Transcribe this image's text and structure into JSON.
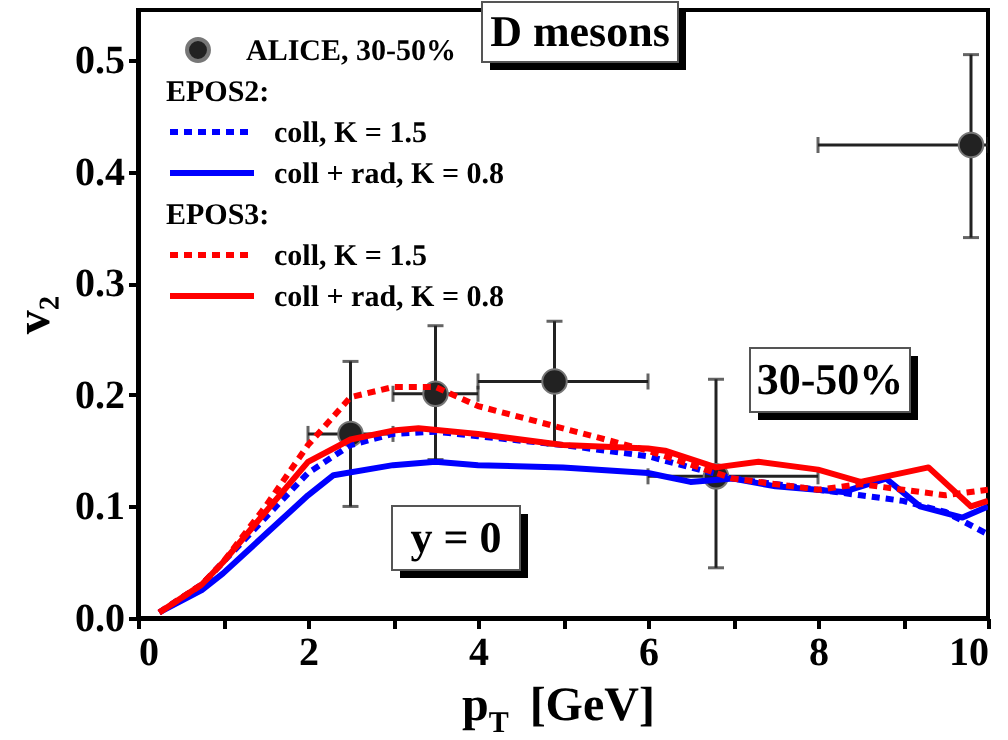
{
  "chart_data": {
    "type": "line",
    "xlabel": "p$_{T}$ [GeV]",
    "ylabel": "v₂",
    "annotations": [
      "D mesons",
      "30-50%",
      "y = 0",
      "EPOS2:",
      "EPOS3:"
    ],
    "xlim": [
      0,
      10
    ],
    "ylim": [
      0,
      0.545
    ],
    "xticks": [
      0,
      {
        "value": 1,
        "label": null
      },
      2,
      {
        "value": 3,
        "label": null
      },
      4,
      {
        "value": 5,
        "label": null
      },
      6,
      {
        "value": 7,
        "label": null
      },
      8,
      {
        "value": 9,
        "label": null
      },
      10
    ],
    "yticks": [
      {
        "value": 0,
        "label": "0.0"
      },
      {
        "value": 0.1,
        "label": "0.1"
      },
      {
        "value": 0.2,
        "label": "0.2"
      },
      {
        "value": 0.3,
        "label": "0.3"
      },
      {
        "value": 0.4,
        "label": "0.4"
      },
      {
        "value": 0.5,
        "label": "0.5"
      }
    ],
    "grid": false,
    "legend": "top left",
    "series": [
      {
        "name": "ALICE, 30-50%",
        "type": "scatter",
        "marker": "circle",
        "color": "#222222",
        "x": [
          2.5,
          3.5,
          4.9,
          6.8,
          9.8
        ],
        "values": [
          0.165,
          0.201,
          0.212,
          0.127,
          0.424
        ],
        "errors": [
          [
            0.1,
            0.23
          ],
          [
            0.142,
            0.262
          ],
          [
            0.155,
            0.266
          ],
          [
            0.045,
            0.214
          ],
          [
            0.341,
            0.505
          ]
        ],
        "xerrors": [
          [
            2,
            3
          ],
          [
            3,
            4
          ],
          [
            4,
            6
          ],
          [
            6,
            8
          ],
          [
            8,
            10
          ]
        ]
      },
      {
        "name": "coll, K = 1.5",
        "line_style": "dashed",
        "color": "#0000ff",
        "x": [
          0.25,
          0.75,
          1,
          1.5,
          2,
          2.5,
          3,
          3.5,
          4,
          5,
          6,
          7,
          8,
          8.5,
          9,
          9.5,
          10
        ],
        "values": [
          0.005,
          0.03,
          0.05,
          0.09,
          0.13,
          0.155,
          0.165,
          0.167,
          0.163,
          0.155,
          0.145,
          0.125,
          0.115,
          0.11,
          0.105,
          0.095,
          0.075
        ]
      },
      {
        "name": "coll + rad, K = 0.8",
        "line_style": "solid",
        "color": "#0000ff",
        "x": [
          0.25,
          0.75,
          1,
          1.5,
          2,
          2.3,
          3,
          3.5,
          4,
          5,
          6,
          6.5,
          7,
          7.5,
          8.3,
          8.8,
          9.2,
          9.7,
          10
        ],
        "values": [
          0.005,
          0.025,
          0.04,
          0.075,
          0.11,
          0.128,
          0.137,
          0.14,
          0.137,
          0.135,
          0.13,
          0.122,
          0.125,
          0.118,
          0.113,
          0.125,
          0.1,
          0.09,
          0.1
        ]
      },
      {
        "name": "coll, K = 1.5",
        "line_style": "dashed",
        "color": "#ff0000",
        "x": [
          0.25,
          0.75,
          1,
          1.5,
          2,
          2.5,
          3,
          3.5,
          4,
          5,
          6,
          7,
          8,
          8.5,
          9,
          9.5,
          10
        ],
        "values": [
          0.005,
          0.03,
          0.05,
          0.1,
          0.155,
          0.198,
          0.207,
          0.207,
          0.19,
          0.17,
          0.15,
          0.125,
          0.115,
          0.12,
          0.115,
          0.11,
          0.115
        ]
      },
      {
        "name": "coll + rad, K = 0.8",
        "line_style": "solid",
        "color": "#ff0000",
        "x": [
          0.25,
          0.75,
          1,
          1.5,
          2,
          2.5,
          3,
          3.3,
          4,
          5,
          6,
          6.2,
          6.8,
          7.3,
          8,
          8.5,
          9.3,
          9.8,
          10
        ],
        "values": [
          0.005,
          0.03,
          0.05,
          0.095,
          0.14,
          0.16,
          0.168,
          0.17,
          0.165,
          0.155,
          0.152,
          0.15,
          0.135,
          0.14,
          0.133,
          0.122,
          0.135,
          0.1,
          0.105
        ]
      }
    ]
  }
}
